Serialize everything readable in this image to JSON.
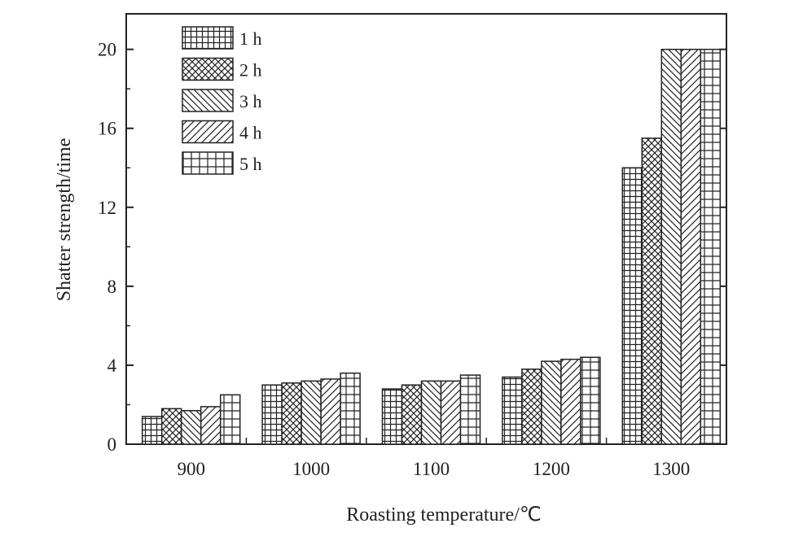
{
  "chart_data": {
    "type": "bar",
    "xlabel": "Roasting temperature/℃",
    "ylabel": "Shatter strength/time",
    "categories": [
      "900",
      "1000",
      "1100",
      "1200",
      "1300"
    ],
    "ylim": [
      0,
      21.8
    ],
    "yticks": [
      0,
      4,
      8,
      12,
      16,
      20
    ],
    "grid": false,
    "legend_position": "top-left",
    "series": [
      {
        "name": "1 h",
        "pattern": "grid",
        "values": [
          1.4,
          3.0,
          2.8,
          3.4,
          14.0
        ]
      },
      {
        "name": "2 h",
        "pattern": "crosshatch",
        "values": [
          1.8,
          3.1,
          3.0,
          3.8,
          15.5
        ]
      },
      {
        "name": "3 h",
        "pattern": "backslash",
        "values": [
          1.7,
          3.2,
          3.2,
          4.2,
          20.0
        ]
      },
      {
        "name": "4 h",
        "pattern": "slash",
        "values": [
          1.9,
          3.3,
          3.2,
          4.3,
          20.0
        ]
      },
      {
        "name": "5 h",
        "pattern": "brick",
        "values": [
          2.5,
          3.6,
          3.5,
          4.4,
          20.0
        ]
      }
    ],
    "colors": {
      "ink": "#222222",
      "background": "#ffffff"
    }
  }
}
